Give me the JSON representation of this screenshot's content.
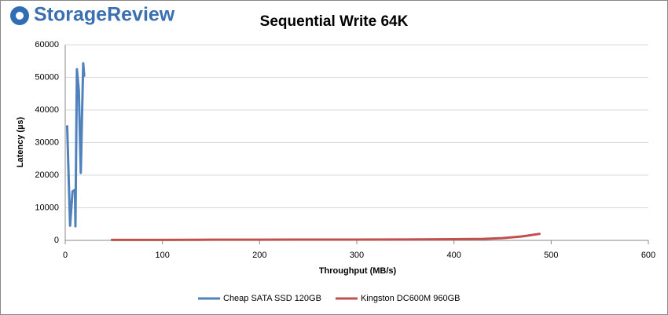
{
  "logo": "StorageReview",
  "chart_data": {
    "type": "line",
    "title": "Sequential Write 64K",
    "x_label": "Throughput (MB/s)",
    "y_label": "Latency (µs)",
    "xlim": [
      0,
      600
    ],
    "xticks": [
      0,
      100,
      200,
      300,
      400,
      500,
      600
    ],
    "ylim": [
      0,
      60000
    ],
    "yticks": [
      0,
      10000,
      20000,
      30000,
      40000,
      50000,
      60000
    ],
    "grid": true,
    "legend": "bottom",
    "series": [
      {
        "name": "Cheap SATA SSD 120GB",
        "color": "#4f81bd",
        "x": [
          2,
          5,
          7.5,
          10,
          10.5,
          12,
          14,
          16,
          18.5,
          19.5
        ],
        "values": [
          35000,
          4500,
          15000,
          15500,
          4300,
          52500,
          46000,
          20700,
          54300,
          50500
        ]
      },
      {
        "name": "Kingston DC600M 960GB",
        "color": "#c0504d",
        "x": [
          48,
          100,
          150,
          200,
          250,
          300,
          350,
          400,
          430,
          450,
          470,
          488
        ],
        "values": [
          150,
          160,
          200,
          220,
          230,
          240,
          260,
          350,
          450,
          700,
          1200,
          2000
        ]
      }
    ]
  }
}
